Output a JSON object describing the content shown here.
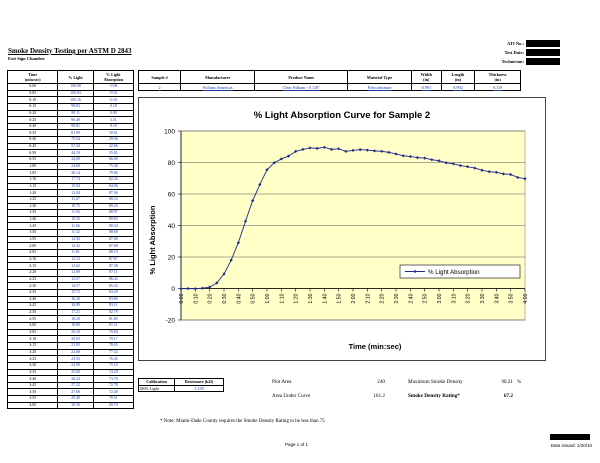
{
  "header": {
    "title": "Smoke Density Testing per ASTM D 2843",
    "subtitle": "Exit Sign Chamber",
    "ati_no_label": "ATI No.:",
    "test_date_label": "Test Date:",
    "technician_label": "Technician:"
  },
  "data_table": {
    "col_time": "Time\n(min:sec)",
    "col_light": "% Light",
    "col_absorption": "% Light\nAbsorption",
    "rows": [
      [
        "0:00",
        "100.08",
        "-0.08"
      ],
      [
        "0:05",
        "100.03",
        "-0.03"
      ],
      [
        "0:10",
        "100.16",
        "-0.16"
      ],
      [
        "0:15",
        "99.82",
        "0.18"
      ],
      [
        "0:20",
        "99.11",
        "0.89"
      ],
      [
        "0:25",
        "96.49",
        "3.51"
      ],
      [
        "0:30",
        "90.81",
        "9.19"
      ],
      [
        "0:35",
        "81.99",
        "18.01"
      ],
      [
        "0:40",
        "70.94",
        "29.06"
      ],
      [
        "0:45",
        "57.34",
        "42.66"
      ],
      [
        "0:50",
        "44.19",
        "55.81"
      ],
      [
        "0:55",
        "34.00",
        "66.00"
      ],
      [
        "1:00",
        "24.60",
        "75.40"
      ],
      [
        "1:05",
        "20.14",
        "79.86"
      ],
      [
        "1:10",
        "17.74",
        "82.26"
      ],
      [
        "1:15",
        "15.94",
        "84.06"
      ],
      [
        "1:20",
        "12.94",
        "87.06"
      ],
      [
        "1:25",
        "11.67",
        "88.33"
      ],
      [
        "1:30",
        "10.75",
        "89.25"
      ],
      [
        "1:35",
        "11.03",
        "88.97"
      ],
      [
        "1:40",
        "10.35",
        "89.65"
      ],
      [
        "1:45",
        "11.66",
        "88.34"
      ],
      [
        "1:50",
        "11.32",
        "88.68"
      ],
      [
        "1:55",
        "12.92",
        "87.08"
      ],
      [
        "2:00",
        "12.32",
        "87.68"
      ],
      [
        "2:05",
        "11.81",
        "88.19"
      ],
      [
        "2:10",
        "12.13",
        "87.87"
      ],
      [
        "2:15",
        "12.62",
        "87.38"
      ],
      [
        "2:20",
        "12.89",
        "87.11"
      ],
      [
        "2:25",
        "13.57",
        "86.43"
      ],
      [
        "2:30",
        "14.57",
        "85.43"
      ],
      [
        "2:35",
        "15.72",
        "84.28"
      ],
      [
        "2:40",
        "16.20",
        "83.80"
      ],
      [
        "2:45",
        "16.89",
        "83.11"
      ],
      [
        "2:50",
        "17.21",
        "82.79"
      ],
      [
        "2:55",
        "18.20",
        "81.80"
      ],
      [
        "3:00",
        "18.89",
        "81.11"
      ],
      [
        "3:05",
        "20.16",
        "79.84"
      ],
      [
        "3:10",
        "20.83",
        "79.17"
      ],
      [
        "3:15",
        "21.95",
        "78.05"
      ],
      [
        "3:20",
        "22.68",
        "77.32"
      ],
      [
        "3:25",
        "23.55",
        "76.45"
      ],
      [
        "3:30",
        "24.90",
        "75.10"
      ],
      [
        "3:35",
        "25.80",
        "74.20"
      ],
      [
        "3:40",
        "26.22",
        "73.78"
      ],
      [
        "3:45",
        "27.22",
        "72.78"
      ],
      [
        "3:50",
        "27.60",
        "72.40"
      ],
      [
        "3:55",
        "29.49",
        "70.51"
      ],
      [
        "4:00",
        "30.30",
        "69.70"
      ]
    ]
  },
  "sample_table": {
    "headers": [
      "Sample #",
      "Manufacturer",
      "Product Name",
      "Material Type",
      "Width\n(in)",
      "Length\n(in)",
      "Thickness\n(in)"
    ],
    "values": [
      "2",
      "Fulham Americas",
      "Clear Fulham - 0.118\"",
      "Polycarbonate",
      "0.991",
      "0.992",
      "0.119"
    ]
  },
  "calibration": {
    "headers": [
      "Calibration",
      "Resistance (kΩ)"
    ],
    "label": "100% Light",
    "value": "3.109"
  },
  "stats": {
    "plot_area_label": "Plot Area",
    "plot_area_value": "240",
    "area_under_label": "Area Under Curve",
    "area_under_value": "161.2",
    "max_density_label": "Maximum Smoke Density",
    "max_density_value": "90.21",
    "max_density_unit": "%",
    "rating_label": "Smoke Density Rating*",
    "rating_value": "67.2"
  },
  "note": "* Note: Miami-Dade County requires the Smoke Density Rating to be less than 75",
  "footer": {
    "page": "Page 1 of 1",
    "date_issued": "Date issued: 1/20/10"
  },
  "chart_data": {
    "type": "line",
    "title": "% Light Absorption Curve for Sample 2",
    "xlabel": "Time (min:sec)",
    "ylabel": "% Light Absorption",
    "ylim": [
      -20,
      100
    ],
    "yticks": [
      -20,
      0,
      20,
      40,
      60,
      80,
      100
    ],
    "grid": true,
    "legend_position": "right",
    "categories": [
      "0:00",
      "0:05",
      "0:10",
      "0:15",
      "0:20",
      "0:25",
      "0:30",
      "0:35",
      "0:40",
      "0:45",
      "0:50",
      "0:55",
      "1:00",
      "1:05",
      "1:10",
      "1:15",
      "1:20",
      "1:25",
      "1:30",
      "1:35",
      "1:40",
      "1:45",
      "1:50",
      "1:55",
      "2:00",
      "2:05",
      "2:10",
      "2:15",
      "2:20",
      "2:25",
      "2:30",
      "2:35",
      "2:40",
      "2:45",
      "2:50",
      "2:55",
      "3:00",
      "3:05",
      "3:10",
      "3:15",
      "3:20",
      "3:25",
      "3:30",
      "3:35",
      "3:40",
      "3:45",
      "3:50",
      "3:55",
      "4:00"
    ],
    "tick_labels": [
      "0:00",
      "0:10",
      "0:20",
      "0:30",
      "0:40",
      "0:50",
      "1:00",
      "1:10",
      "1:20",
      "1:30",
      "1:40",
      "1:50",
      "2:00",
      "2:10",
      "2:20",
      "2:30",
      "2:40",
      "2:50",
      "3:00",
      "3:10",
      "3:20",
      "3:30",
      "3:40",
      "3:50",
      "4:00"
    ],
    "series": [
      {
        "name": "% Light Absorption",
        "color": "#1f2a8a",
        "values": [
          -0.08,
          -0.03,
          -0.16,
          0.18,
          0.89,
          3.51,
          9.19,
          18.01,
          29.06,
          42.66,
          55.81,
          66.0,
          75.4,
          79.86,
          82.26,
          84.06,
          87.06,
          88.33,
          89.25,
          88.97,
          89.65,
          88.34,
          88.68,
          87.08,
          87.68,
          88.19,
          87.87,
          87.38,
          87.11,
          86.43,
          85.43,
          84.28,
          83.8,
          83.11,
          82.79,
          81.8,
          81.11,
          79.84,
          79.17,
          78.05,
          77.32,
          76.45,
          75.1,
          74.2,
          73.78,
          72.78,
          72.4,
          70.51,
          69.7
        ]
      }
    ],
    "plot_bg": "#ffffc8"
  }
}
